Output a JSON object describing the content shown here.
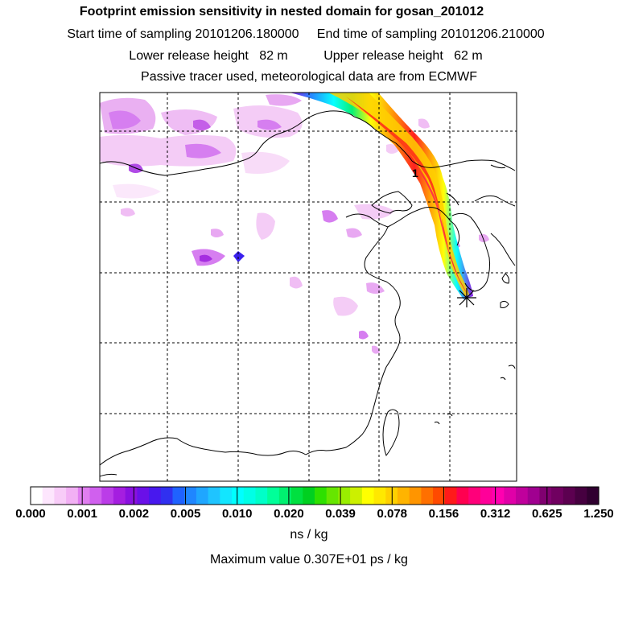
{
  "header": {
    "title": "Footprint emission sensitivity in nested domain for gosan_201012",
    "start_label": "Start time of sampling",
    "start_value": "20101206.180000",
    "end_label": "End time of sampling",
    "end_value": "20101206.210000",
    "lower_label": "Lower release height",
    "lower_value": "82 m",
    "upper_label": "Upper release height",
    "upper_value": "62 m",
    "note": "Passive tracer used, meteorological data are from ECMWF"
  },
  "map": {
    "plume_label": "1",
    "receptor_symbol": "star",
    "colors": {
      "coast": "#000000",
      "grid": "#000000"
    }
  },
  "colorbar": {
    "tick_labels": [
      "0.000",
      "0.001",
      "0.002",
      "0.005",
      "0.010",
      "0.020",
      "0.039",
      "0.078",
      "0.156",
      "0.312",
      "0.625",
      "1.250"
    ],
    "colors": [
      "#ffffff",
      "#fde6fd",
      "#f8ccf8",
      "#f2b0f4",
      "#e07ef0",
      "#d060ee",
      "#bb3ce8",
      "#a51ee0",
      "#8a10e0",
      "#6a10e8",
      "#4818ee",
      "#3030f0",
      "#1f62ff",
      "#1f86ff",
      "#1fa6ff",
      "#1fc4ff",
      "#12e6ff",
      "#00ffff",
      "#00ffe6",
      "#00ffc8",
      "#00ff99",
      "#00f070",
      "#00e040",
      "#00d020",
      "#2ee000",
      "#66e600",
      "#99ee00",
      "#ccf000",
      "#ffff00",
      "#ffe800",
      "#ffd000",
      "#ffb400",
      "#ff9500",
      "#ff7000",
      "#ff4a00",
      "#ff1a1a",
      "#ff0050",
      "#ff007a",
      "#ff0099",
      "#ff00b0",
      "#e000a8",
      "#c0009c",
      "#a00090",
      "#800070",
      "#700060",
      "#5c0050",
      "#460040",
      "#300030"
    ],
    "units": "ns / kg",
    "max_label": "Maximum value",
    "max_value": "0.307E+01 ps / kg"
  }
}
